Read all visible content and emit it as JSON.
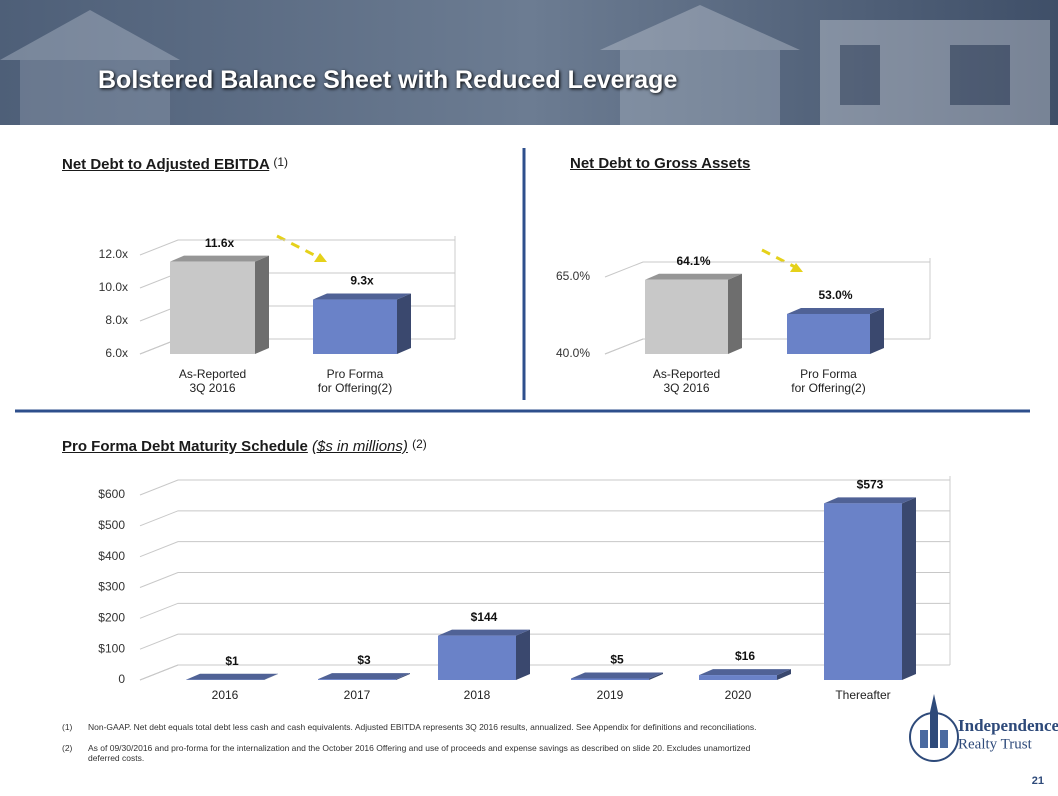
{
  "title": "Bolstered Balance Sheet with Reduced Leverage",
  "chart_data": [
    {
      "type": "bar",
      "title": "Net Debt to Adjusted EBITDA",
      "note": "(1)",
      "categories": [
        "As-Reported\n3Q 2016",
        "Pro Forma\nfor Offering(2)"
      ],
      "values": [
        11.6,
        9.3
      ],
      "value_labels": [
        "11.6x",
        "9.3x"
      ],
      "colors": [
        "#c8c8c8",
        "#6a82c8"
      ],
      "ylim": [
        6,
        12
      ],
      "yticks": [
        {
          "value": 6,
          "label": "6.0x"
        },
        {
          "value": 8,
          "label": "8.0x"
        },
        {
          "value": 10,
          "label": "10.0x"
        },
        {
          "value": 12,
          "label": "12.0x"
        }
      ]
    },
    {
      "type": "bar",
      "title": "Net Debt to Gross Assets",
      "categories": [
        "As-Reported\n3Q 2016",
        "Pro Forma\nfor Offering(2)"
      ],
      "values": [
        64.1,
        53.0
      ],
      "value_labels": [
        "64.1%",
        "53.0%"
      ],
      "colors": [
        "#c8c8c8",
        "#6a82c8"
      ],
      "ylim": [
        40,
        65
      ],
      "yticks": [
        {
          "value": 40,
          "label": "40.0%"
        },
        {
          "value": 65,
          "label": "65.0%"
        }
      ]
    },
    {
      "type": "bar",
      "title": "Pro Forma Debt Maturity Schedule",
      "unit": "($s in millions)",
      "note": "(2)",
      "categories": [
        "2016",
        "2017",
        "2018",
        "2019",
        "2020",
        "Thereafter"
      ],
      "values": [
        1,
        3,
        144,
        5,
        16,
        573
      ],
      "value_labels": [
        "$1",
        "$3",
        "$144",
        "$5",
        "$16",
        "$573"
      ],
      "colors": [
        "#6a82c8",
        "#6a82c8",
        "#6a82c8",
        "#6a82c8",
        "#6a82c8",
        "#6a82c8"
      ],
      "ylim": [
        0,
        600
      ],
      "yticks": [
        0,
        {
          "value": 100,
          "label": "$100"
        },
        {
          "value": 200,
          "label": "$200"
        },
        {
          "value": 300,
          "label": "$300"
        },
        {
          "value": 400,
          "label": "$400"
        },
        {
          "value": 500,
          "label": "$500"
        },
        {
          "value": 600,
          "label": "$600"
        }
      ]
    }
  ],
  "footnotes": [
    {
      "marker": "(1)",
      "text": "Non-GAAP. Net debt equals total debt less cash and cash equivalents.  Adjusted EBITDA represents 3Q 2016 results, annualized.  See Appendix for definitions and reconciliations."
    },
    {
      "marker": "(2)",
      "text": "As of 09/30/2016 and pro-forma for the internalization and the October 2016 Offering and use of proceeds and expense savings as described on slide 20.  Excludes unamortized deferred costs."
    }
  ],
  "logo": {
    "line1": "Independence",
    "line2": "Realty Trust"
  },
  "page_number": 21
}
